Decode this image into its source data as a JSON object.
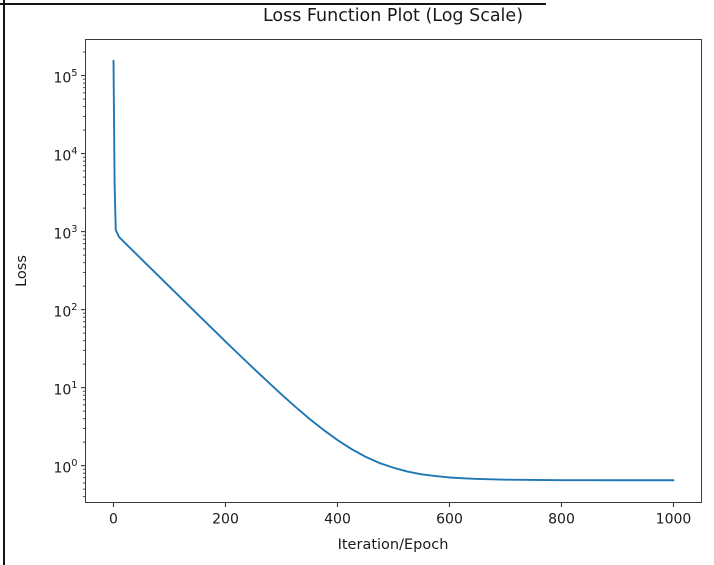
{
  "frame": {
    "border_color": "#141414"
  },
  "chart_data": {
    "type": "line",
    "title": "Loss Function Plot (Log Scale)",
    "xlabel": "Iteration/Epoch",
    "ylabel": "Loss",
    "yscale": "log",
    "grid": false,
    "legend": null,
    "xlim": [
      -50,
      1050
    ],
    "ylim": [
      0.337,
      290000
    ],
    "x_ticks": [
      0,
      200,
      400,
      600,
      800,
      1000
    ],
    "y_tick_exponents": [
      0,
      1,
      2,
      3,
      4,
      5
    ],
    "line_color": "#1f77b4",
    "axis_color": "#3a3a3a",
    "text_color": "#1a1a1a",
    "series": [
      {
        "name": "loss",
        "x": [
          0,
          2,
          4,
          10,
          25,
          50,
          75,
          100,
          125,
          150,
          175,
          200,
          225,
          250,
          275,
          300,
          325,
          350,
          375,
          400,
          425,
          450,
          475,
          500,
          525,
          550,
          575,
          600,
          625,
          650,
          700,
          750,
          800,
          850,
          900,
          950,
          1000
        ],
        "y": [
          155000,
          4000,
          1050,
          850,
          666,
          443,
          295,
          196.5,
          131,
          87.4,
          58.4,
          39.0,
          26.2,
          17.7,
          12.0,
          8.18,
          5.66,
          3.98,
          2.87,
          2.13,
          1.63,
          1.3,
          1.08,
          0.94,
          0.84,
          0.775,
          0.735,
          0.705,
          0.688,
          0.675,
          0.661,
          0.655,
          0.652,
          0.651,
          0.65,
          0.65,
          0.65
        ]
      }
    ]
  }
}
